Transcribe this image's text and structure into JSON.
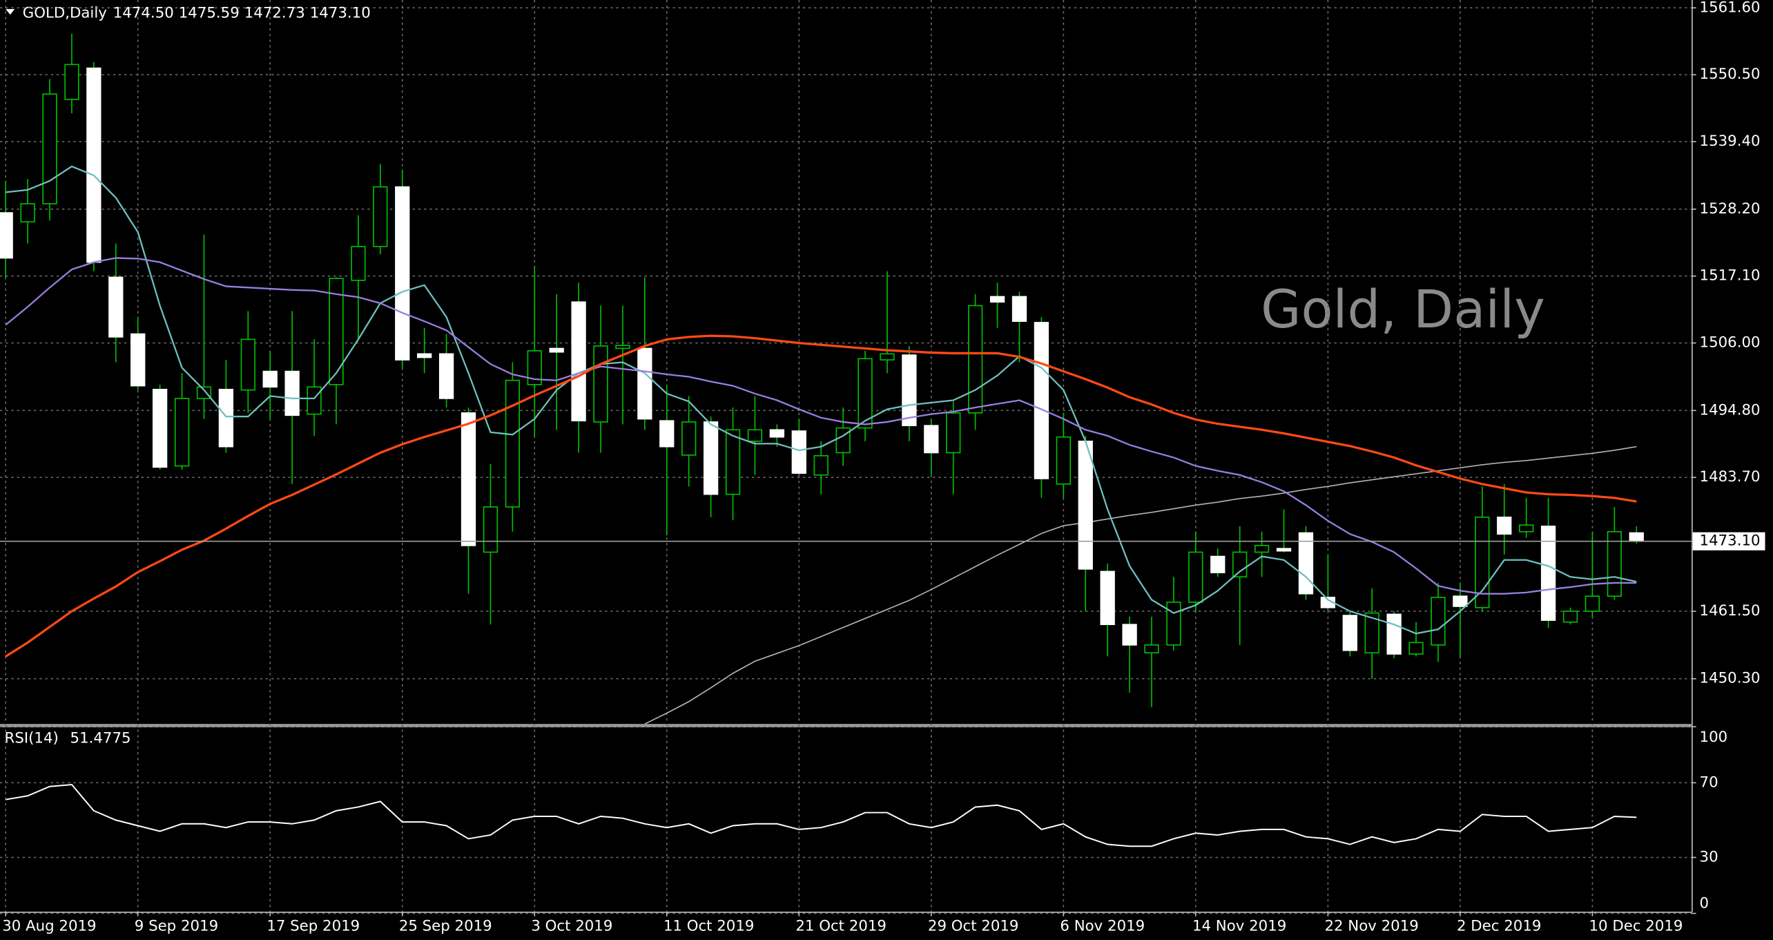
{
  "chart_data": {
    "type": "candlestick",
    "title": "GOLD,Daily",
    "title_values": [
      "1474.50",
      "1475.59",
      "1472.73",
      "1473.10"
    ],
    "watermark": "Gold, Daily",
    "categories": [
      "30 Aug 2019",
      null,
      null,
      null,
      null,
      null,
      "9 Sep 2019",
      null,
      null,
      null,
      null,
      null,
      "17 Sep 2019",
      null,
      null,
      null,
      null,
      null,
      "25 Sep 2019",
      null,
      null,
      null,
      null,
      null,
      "3 Oct 2019",
      null,
      null,
      null,
      null,
      null,
      "11 Oct 2019",
      null,
      null,
      null,
      null,
      null,
      "21 Oct 2019",
      null,
      null,
      null,
      null,
      null,
      "29 Oct 2019",
      null,
      null,
      null,
      null,
      null,
      "6 Nov 2019",
      null,
      null,
      null,
      null,
      null,
      "14 Nov 2019",
      null,
      null,
      null,
      null,
      null,
      "22 Nov 2019",
      null,
      null,
      null,
      null,
      null,
      "2 Dec 2019",
      null,
      null,
      null,
      null,
      null,
      "10 Dec 2019",
      null,
      null
    ],
    "open": [
      1527.6,
      1526.1,
      1529.1,
      1546.4,
      1551.6,
      1516.9,
      1507.5,
      1498.3,
      1485.6,
      1496.8,
      1498.3,
      1498.2,
      1501.3,
      1501.3,
      1494.2,
      1499.1,
      1516.4,
      1522.0,
      1531.9,
      1504.2,
      1504.2,
      1494.4,
      1471.3,
      1478.8,
      1499.1,
      1505.1,
      1512.8,
      1492.9,
      1505.1,
      1505.1,
      1493.1,
      1487.4,
      1492.9,
      1480.9,
      1489.7,
      1491.6,
      1491.4,
      1484.1,
      1487.8,
      1491.9,
      1503.2,
      1504.0,
      1492.3,
      1487.8,
      1494.4,
      1513.7,
      1513.7,
      1509.4,
      1482.6,
      1489.7,
      1468.1,
      1459.3,
      1454.6,
      1455.9,
      1463.0,
      1470.6,
      1467.2,
      1471.3,
      1471.9,
      1474.5,
      1463.8,
      1460.8,
      1454.6,
      1461.0,
      1454.4,
      1455.9,
      1464.0,
      1462.1,
      1477.1,
      1474.7,
      1475.6,
      1459.7,
      1461.5,
      1464.0,
      1474.5
    ],
    "high": [
      1532.9,
      1533.2,
      1549.8,
      1557.3,
      1552.6,
      1522.5,
      1510.3,
      1499.1,
      1501.0,
      1524.0,
      1503.2,
      1511.3,
      1504.7,
      1511.3,
      1506.6,
      1516.9,
      1527.2,
      1535.7,
      1534.7,
      1508.5,
      1507.5,
      1495.3,
      1485.9,
      1502.8,
      1518.8,
      1514.1,
      1516.0,
      1512.2,
      1512.2,
      1516.9,
      1499.1,
      1497.2,
      1493.8,
      1495.3,
      1497.2,
      1492.5,
      1493.4,
      1489.7,
      1495.3,
      1504.7,
      1517.9,
      1505.5,
      1493.4,
      1496.3,
      1514.1,
      1516.0,
      1514.5,
      1510.3,
      1494.4,
      1490.6,
      1469.4,
      1460.6,
      1460.6,
      1467.2,
      1474.7,
      1471.9,
      1475.6,
      1474.7,
      1478.4,
      1475.6,
      1470.9,
      1461.5,
      1465.3,
      1461.5,
      1459.7,
      1466.2,
      1466.2,
      1482.2,
      1482.6,
      1480.3,
      1480.3,
      1462.1,
      1474.7,
      1478.8,
      1475.59
    ],
    "low": [
      1516.9,
      1522.5,
      1526.3,
      1544.1,
      1517.9,
      1502.8,
      1498.2,
      1485.0,
      1485.0,
      1493.4,
      1487.8,
      1494.4,
      1493.4,
      1482.6,
      1490.6,
      1492.5,
      1506.6,
      1520.7,
      1501.9,
      1501.0,
      1495.3,
      1464.4,
      1459.3,
      1474.7,
      1490.6,
      1491.6,
      1487.8,
      1487.8,
      1492.5,
      1491.6,
      1474.1,
      1482.2,
      1477.1,
      1476.6,
      1484.1,
      1488.8,
      1484.1,
      1480.9,
      1485.6,
      1489.7,
      1501.0,
      1489.7,
      1484.1,
      1480.9,
      1491.6,
      1508.5,
      1502.8,
      1480.3,
      1480.3,
      1461.5,
      1454.0,
      1448.0,
      1445.6,
      1455.0,
      1461.5,
      1467.2,
      1455.9,
      1467.2,
      1471.3,
      1463.4,
      1461.5,
      1454.0,
      1450.3,
      1453.7,
      1454.0,
      1453.1,
      1454.0,
      1461.5,
      1470.9,
      1473.7,
      1458.7,
      1459.3,
      1460.6,
      1463.4,
      1472.73
    ],
    "close": [
      1520.1,
      1529.1,
      1547.3,
      1552.2,
      1519.4,
      1507.0,
      1498.9,
      1485.4,
      1496.8,
      1498.7,
      1488.8,
      1506.6,
      1498.7,
      1494.0,
      1498.7,
      1516.7,
      1522.0,
      1531.9,
      1503.2,
      1503.6,
      1496.8,
      1472.4,
      1478.8,
      1499.8,
      1504.7,
      1504.5,
      1493.1,
      1505.5,
      1505.6,
      1493.4,
      1488.8,
      1492.9,
      1480.9,
      1491.6,
      1491.6,
      1490.4,
      1484.4,
      1487.3,
      1491.9,
      1503.4,
      1504.2,
      1492.3,
      1487.8,
      1494.4,
      1512.2,
      1512.8,
      1509.6,
      1483.5,
      1490.4,
      1468.5,
      1459.3,
      1455.9,
      1455.9,
      1463.0,
      1471.3,
      1467.9,
      1471.3,
      1472.4,
      1471.5,
      1464.4,
      1462.1,
      1455.0,
      1461.2,
      1454.4,
      1456.3,
      1463.8,
      1462.3,
      1477.1,
      1474.3,
      1475.8,
      1460.0,
      1461.5,
      1464.0,
      1474.7,
      1473.1
    ],
    "up_color": "#000000",
    "down_color": "#ffffff",
    "wick_color": "#00c000",
    "ylim": [
      1442.8,
      1562.9
    ],
    "yticks": [
      {
        "value": 1561.6,
        "label": "1561.60"
      },
      {
        "value": 1550.5,
        "label": "1550.50"
      },
      {
        "value": 1539.4,
        "label": "1539.40"
      },
      {
        "value": 1528.2,
        "label": "1528.20"
      },
      {
        "value": 1517.1,
        "label": "1517.10"
      },
      {
        "value": 1506.0,
        "label": "1506.00"
      },
      {
        "value": 1494.8,
        "label": "1494.80"
      },
      {
        "value": 1483.7,
        "label": "1483.70"
      },
      {
        "value": 1461.5,
        "label": "1461.50"
      },
      {
        "value": 1450.3,
        "label": "1450.30"
      }
    ],
    "last_price": {
      "value": 1473.1,
      "label": "1473.10"
    },
    "grid": true,
    "moving_averages": [
      {
        "color": "#6fbfbf",
        "values": [
          1531.0,
          1531.4,
          1532.9,
          1535.3,
          1533.8,
          1530.1,
          1524.4,
          1512.2,
          1501.9,
          1498.2,
          1493.8,
          1493.8,
          1497.2,
          1496.8,
          1496.8,
          1501.0,
          1506.6,
          1512.6,
          1514.5,
          1515.6,
          1510.3,
          1501.0,
          1491.2,
          1490.8,
          1493.4,
          1498.2,
          1501.0,
          1502.5,
          1502.8,
          1501.0,
          1497.6,
          1496.3,
          1492.5,
          1490.6,
          1489.3,
          1489.3,
          1488.2,
          1488.8,
          1490.6,
          1493.1,
          1495.0,
          1495.7,
          1496.1,
          1496.5,
          1498.2,
          1500.6,
          1503.8,
          1501.9,
          1498.2,
          1489.7,
          1478.4,
          1469.0,
          1463.4,
          1461.2,
          1462.5,
          1464.9,
          1468.1,
          1470.6,
          1470.0,
          1467.2,
          1463.4,
          1461.5,
          1460.4,
          1459.3,
          1457.8,
          1458.5,
          1461.5,
          1464.9,
          1470.0,
          1470.0,
          1469.0,
          1467.2,
          1466.8,
          1467.2,
          1466.4
        ]
      },
      {
        "color": "#9a7ee0",
        "values": [
          1509.0,
          1512.0,
          1515.2,
          1518.2,
          1519.4,
          1520.1,
          1520.0,
          1519.4,
          1518.0,
          1516.6,
          1515.4,
          1515.2,
          1515.0,
          1514.8,
          1514.7,
          1514.1,
          1513.6,
          1512.6,
          1511.0,
          1509.6,
          1508.1,
          1505.3,
          1502.5,
          1500.8,
          1500.0,
          1499.8,
          1501.0,
          1502.1,
          1501.7,
          1501.3,
          1500.8,
          1500.4,
          1499.6,
          1498.9,
          1497.6,
          1496.5,
          1495.0,
          1493.6,
          1492.9,
          1492.5,
          1492.9,
          1493.6,
          1494.2,
          1494.6,
          1495.3,
          1495.9,
          1496.5,
          1495.0,
          1493.4,
          1491.6,
          1490.6,
          1489.1,
          1488.0,
          1487.0,
          1485.6,
          1484.8,
          1484.1,
          1482.9,
          1481.4,
          1479.1,
          1476.5,
          1474.3,
          1473.0,
          1471.3,
          1468.6,
          1465.7,
          1464.9,
          1464.4,
          1464.4,
          1464.6,
          1465.1,
          1465.5,
          1466.0,
          1466.2,
          1466.2
        ]
      },
      {
        "color": "#ff4a14",
        "values": [
          1454.0,
          1456.3,
          1458.9,
          1461.5,
          1463.6,
          1465.6,
          1468.0,
          1469.8,
          1471.7,
          1473.2,
          1475.2,
          1477.3,
          1479.3,
          1480.8,
          1482.5,
          1484.2,
          1486.0,
          1487.8,
          1489.2,
          1490.4,
          1491.5,
          1492.6,
          1494.0,
          1495.6,
          1497.3,
          1498.9,
          1500.5,
          1502.5,
          1504.0,
          1505.5,
          1506.6,
          1507.0,
          1507.2,
          1507.1,
          1506.8,
          1506.4,
          1506.0,
          1505.7,
          1505.4,
          1505.1,
          1504.8,
          1504.6,
          1504.4,
          1504.3,
          1504.3,
          1504.3,
          1503.7,
          1502.6,
          1501.3,
          1500.0,
          1498.6,
          1497.0,
          1495.8,
          1494.4,
          1493.3,
          1492.6,
          1492.1,
          1491.6,
          1491.0,
          1490.3,
          1489.6,
          1488.9,
          1488.0,
          1487.0,
          1485.7,
          1484.6,
          1483.5,
          1482.6,
          1481.9,
          1481.2,
          1480.9,
          1480.8,
          1480.6,
          1480.3,
          1479.7
        ]
      },
      {
        "color": "#b4b4b4",
        "values": [
          null,
          null,
          null,
          null,
          null,
          null,
          null,
          null,
          null,
          null,
          null,
          null,
          null,
          null,
          null,
          null,
          null,
          null,
          null,
          null,
          null,
          null,
          null,
          null,
          null,
          null,
          null,
          null,
          null,
          1442.8,
          1444.6,
          1446.5,
          1448.8,
          1451.2,
          1453.2,
          1454.5,
          1455.8,
          1457.3,
          1458.8,
          1460.3,
          1461.8,
          1463.3,
          1465.1,
          1467.0,
          1468.9,
          1470.8,
          1472.6,
          1474.4,
          1475.7,
          1476.2,
          1476.8,
          1477.4,
          1477.9,
          1478.5,
          1479.1,
          1479.6,
          1480.2,
          1480.6,
          1481.1,
          1481.7,
          1482.2,
          1482.8,
          1483.3,
          1483.8,
          1484.3,
          1484.8,
          1485.3,
          1485.8,
          1486.2,
          1486.5,
          1486.9,
          1487.3,
          1487.7,
          1488.2,
          1488.8
        ]
      }
    ],
    "rsi": {
      "name": "RSI(14)",
      "color": "#ffffff",
      "ylim": [
        0,
        100
      ],
      "yticks": [
        100,
        70,
        30,
        0
      ],
      "values": [
        61,
        63,
        68,
        69,
        55,
        50,
        47,
        44,
        48,
        48,
        46,
        49,
        49,
        48,
        50,
        55,
        57,
        60,
        49,
        49,
        47,
        40,
        42,
        50,
        52,
        52,
        48,
        52,
        51,
        48,
        46,
        48,
        43,
        47,
        48,
        48,
        45,
        46,
        49,
        54,
        54,
        48,
        46,
        49,
        57,
        58,
        55,
        45,
        48,
        41,
        37,
        36,
        36,
        40,
        43,
        42,
        44,
        45,
        45,
        41,
        40,
        37,
        41,
        38,
        40,
        45,
        44,
        53,
        52,
        52,
        44,
        45,
        46,
        52,
        51.4775
      ]
    }
  }
}
